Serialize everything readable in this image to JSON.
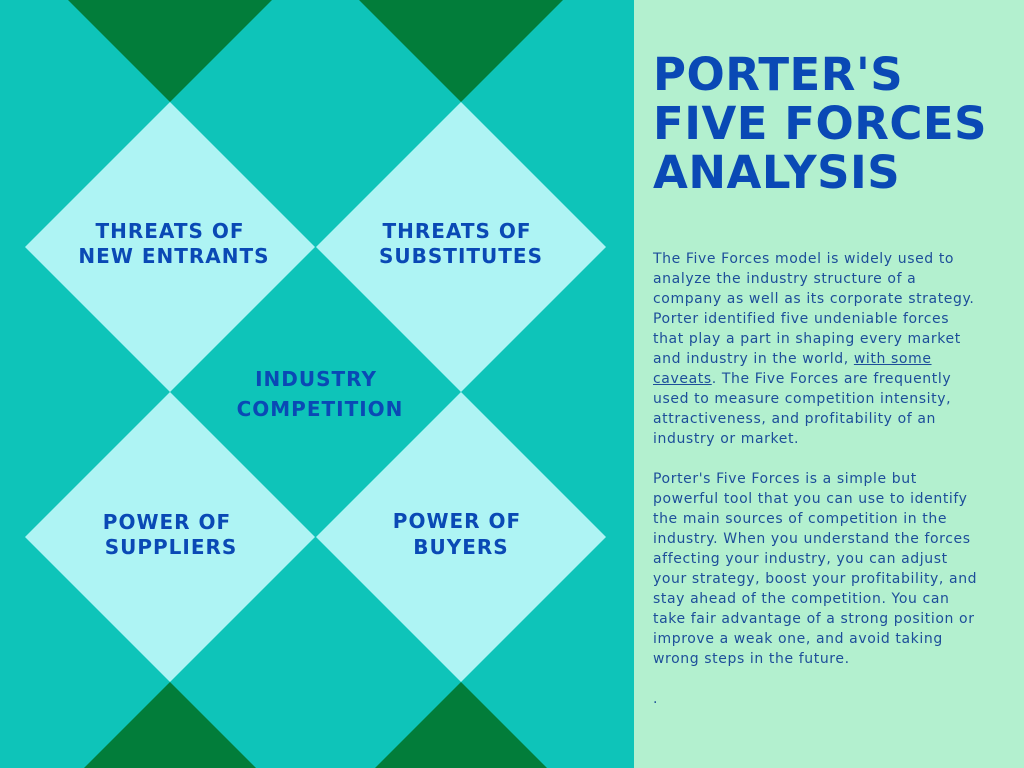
{
  "colors": {
    "teal_background": "#0ec4b9",
    "dark_green": "#027d3a",
    "light_cyan": "#aef4f4",
    "panel_mint": "#b3f0cf",
    "title_blue": "#0a49b5",
    "text_blue": "#1d4e9a"
  },
  "title": [
    "PORTER'S",
    "FIVE FORCES",
    "ANALYSIS"
  ],
  "forces": {
    "top_left": [
      "THREATS OF",
      "NEW ENTRANTS"
    ],
    "top_right": [
      "THREATS OF",
      "SUBSTITUTES"
    ],
    "center": [
      "INDUSTRY",
      "COMPETITION"
    ],
    "bottom_left": [
      "POWER OF",
      "SUPPLIERS"
    ],
    "bottom_right": [
      "POWER OF",
      "BUYERS"
    ]
  },
  "paragraph1": {
    "before_link": "The Five Forces model is widely used to analyze the industry structure of a company as well as its corporate strategy. Porter identified five undeniable forces that play a part in shaping every market and industry in the world, ",
    "link": "with some caveats",
    "after_link": ". The Five Forces are frequently used to measure competition intensity, attractiveness, and profitability of an industry or market."
  },
  "paragraph2": "Porter's Five Forces is a simple but powerful tool that you can use to identify the main sources of competition in the industry. When you understand the forces affecting your industry, you can adjust your strategy, boost your profitability, and stay ahead of the competition. You can take fair advantage of a strong position or improve a weak one, and avoid taking wrong steps in the future.",
  "trailing_mark": "."
}
